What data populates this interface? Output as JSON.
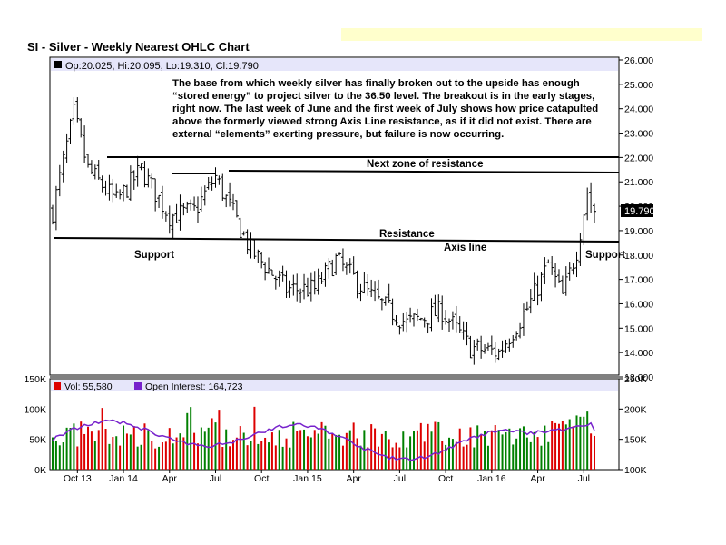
{
  "chart": {
    "title": "SI - Silver - Weekly Nearest OHLC Chart",
    "ohlc_label": "Op:20.025, Hi:20.095, Lo:19.310, Cl:19.790",
    "last_price_label": "19.790",
    "note_text": "The base from which weekly silver has finally broken out to the upside has enough “stored energy” to project silver to the 36.50 level.  The breakout is in the early stages, right now. The last week of June and the first week of July shows how price catapulted above the formerly viewed strong Axis Line resistance, as if it did not exist.  There are external “elements” exerting pressure, but failure is now occurring.",
    "annotations": {
      "next_zone": "Next zone of resistance",
      "resistance": "Resistance",
      "axis_line": "Axis line",
      "support_left": "Support",
      "support_right": "Support"
    },
    "volume_legend": "Vol: 55,580",
    "oi_legend": "Open Interest: 164,723"
  },
  "colors": {
    "up_volume": "#008000",
    "down_volume": "#dd0000",
    "open_interest": "#7722cc",
    "legend_bar_bg": "#e6e6fa"
  },
  "chart_data": [
    {
      "type": "ohlc",
      "title": "SI - Silver - Weekly Nearest OHLC Chart",
      "x_ticks": [
        "Oct 13",
        "Jan 14",
        "Apr",
        "Jul",
        "Oct",
        "Jan 15",
        "Apr",
        "Jul",
        "Oct",
        "Jan 16",
        "Apr",
        "Jul"
      ],
      "y_ticks": [
        "26.000",
        "25.000",
        "24.000",
        "23.000",
        "22.000",
        "21.000",
        "20.000",
        "19.000",
        "18.000",
        "17.000",
        "16.000",
        "15.000",
        "14.000",
        "13.000"
      ],
      "ylim": [
        13,
        26
      ],
      "last": {
        "open": 20.025,
        "high": 20.095,
        "low": 19.31,
        "close": 19.79
      },
      "close_path": [
        {
          "week": 0,
          "close": 19.8
        },
        {
          "week": 4,
          "close": 22.5
        },
        {
          "week": 6,
          "close": 23.8
        },
        {
          "week": 10,
          "close": 21.5
        },
        {
          "week": 18,
          "close": 20.2
        },
        {
          "week": 25,
          "close": 21.5
        },
        {
          "week": 33,
          "close": 19.6
        },
        {
          "week": 40,
          "close": 19.8
        },
        {
          "week": 46,
          "close": 21.2
        },
        {
          "week": 56,
          "close": 18.2
        },
        {
          "week": 66,
          "close": 16.6
        },
        {
          "week": 74,
          "close": 16.6
        },
        {
          "week": 80,
          "close": 17.8
        },
        {
          "week": 90,
          "close": 16.3
        },
        {
          "week": 100,
          "close": 15.2
        },
        {
          "week": 110,
          "close": 15.7
        },
        {
          "week": 118,
          "close": 14.2
        },
        {
          "week": 126,
          "close": 14.0
        },
        {
          "week": 134,
          "close": 15.8
        },
        {
          "week": 140,
          "close": 17.6
        },
        {
          "week": 144,
          "close": 16.3
        },
        {
          "week": 148,
          "close": 18.2
        },
        {
          "week": 151,
          "close": 20.6
        },
        {
          "week": 153,
          "close": 19.79
        }
      ]
    },
    {
      "type": "bar",
      "title": "Vol: 55,580",
      "y_ticks": [
        "150K",
        "100K",
        "50K",
        "0K"
      ],
      "ylim": [
        0,
        150000
      ]
    },
    {
      "type": "line",
      "title": "Open Interest: 164,723",
      "y_ticks": [
        "250K",
        "200K",
        "150K",
        "100K"
      ],
      "ylim": [
        100000,
        250000
      ]
    }
  ]
}
